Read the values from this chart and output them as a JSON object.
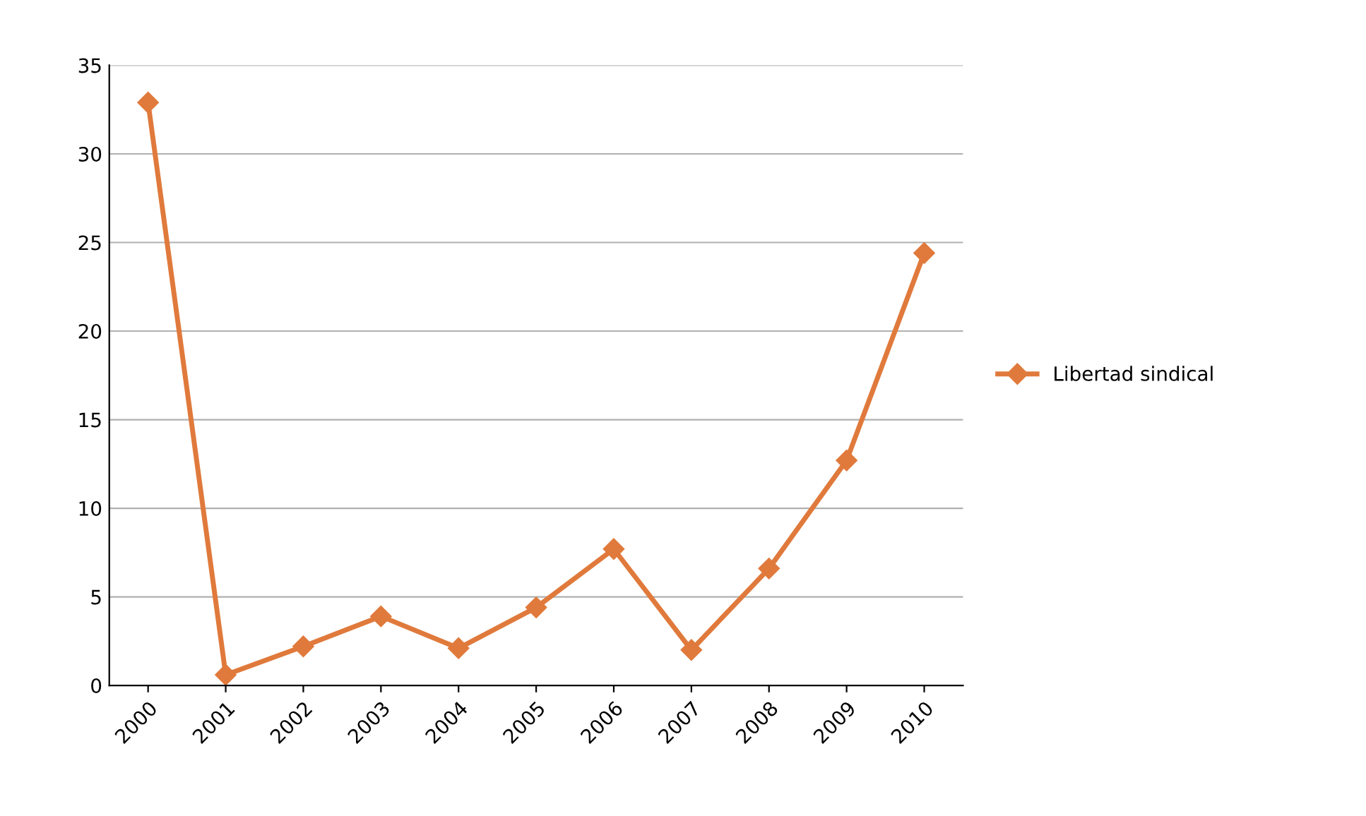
{
  "chart_data": {
    "type": "line",
    "categories": [
      "2000",
      "2001",
      "2002",
      "2003",
      "2004",
      "2005",
      "2006",
      "2007",
      "2008",
      "2009",
      "2010"
    ],
    "series": [
      {
        "name": "Libertad sindical",
        "color": "#e07a3c",
        "values": [
          32.9,
          0.6,
          2.2,
          3.9,
          2.1,
          4.4,
          7.7,
          2.0,
          6.6,
          12.7,
          24.4
        ]
      }
    ],
    "ylim": [
      0,
      35
    ],
    "yticks": [
      0,
      5,
      10,
      15,
      20,
      25,
      30,
      35
    ],
    "grid": "y",
    "legend": "right",
    "marker": "diamond",
    "line_style": "solid"
  }
}
